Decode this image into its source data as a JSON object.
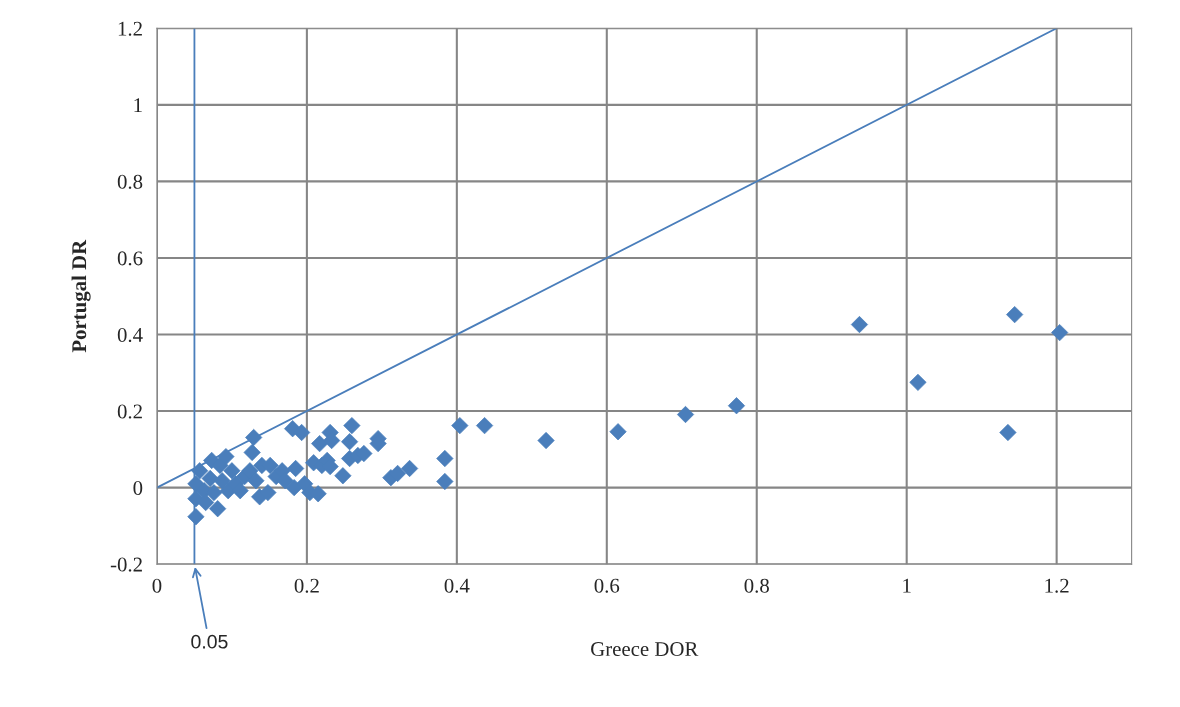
{
  "chart_data": {
    "type": "scatter",
    "xlabel": "Greece DOR",
    "ylabel": "Portugal DR",
    "xlim": [
      0,
      1.3
    ],
    "ylim": [
      -0.2,
      1.2
    ],
    "xticks": [
      0,
      0.2,
      0.4,
      0.6,
      0.8,
      1,
      1.2
    ],
    "yticks": [
      -0.2,
      0,
      0.2,
      0.4,
      0.6,
      0.8,
      1,
      1.2
    ],
    "grid": true,
    "marker": "diamond",
    "series": [
      {
        "color": "#4a7ebb",
        "x": [
          0.052,
          0.052,
          0.052,
          0.057,
          0.063,
          0.065,
          0.071,
          0.073,
          0.076,
          0.081,
          0.084,
          0.087,
          0.092,
          0.095,
          0.1,
          0.105,
          0.111,
          0.117,
          0.124,
          0.127,
          0.129,
          0.132,
          0.137,
          0.14,
          0.148,
          0.151,
          0.159,
          0.167,
          0.171,
          0.181,
          0.185,
          0.183,
          0.193,
          0.197,
          0.204,
          0.209,
          0.215,
          0.217,
          0.22,
          0.227,
          0.231,
          0.233,
          0.231,
          0.248,
          0.257,
          0.26,
          0.257,
          0.268,
          0.276,
          0.295,
          0.295,
          0.312,
          0.321,
          0.337,
          0.384,
          0.384,
          0.404,
          0.437,
          0.519,
          0.615,
          0.705,
          0.773,
          0.937,
          1.015,
          1.144,
          1.135,
          1.204
        ],
        "values": [
          -0.076,
          -0.029,
          0.01,
          0.044,
          -0.008,
          -0.039,
          0.024,
          0.071,
          -0.013,
          -0.055,
          0.058,
          0.018,
          0.081,
          -0.008,
          0.044,
          0.01,
          -0.008,
          0.029,
          0.044,
          0.092,
          0.131,
          0.018,
          -0.024,
          0.058,
          -0.013,
          0.058,
          0.029,
          0.044,
          0.018,
          0.154,
          0.05,
          0,
          0.144,
          0.01,
          -0.013,
          0.065,
          -0.016,
          0.115,
          0.058,
          0.071,
          0.144,
          0.123,
          0.055,
          0.031,
          0.12,
          0.162,
          0.076,
          0.084,
          0.089,
          0.128,
          0.115,
          0.026,
          0.037,
          0.05,
          0.076,
          0.016,
          0.162,
          0.162,
          0.123,
          0.146,
          0.191,
          0.214,
          0.426,
          0.275,
          0.452,
          0.144,
          0.405
        ]
      },
      {
        "type": "line",
        "color": "#4a7ebb",
        "marker": "none",
        "x": [
          0,
          1.2
        ],
        "values": [
          0,
          1.2
        ]
      }
    ],
    "ref_lines": [
      {
        "axis": "x",
        "value": 0.05,
        "color": "#4a7ebb"
      }
    ],
    "annotations": [
      {
        "text": "0.05",
        "x": 0.05,
        "y": -0.2
      }
    ]
  }
}
